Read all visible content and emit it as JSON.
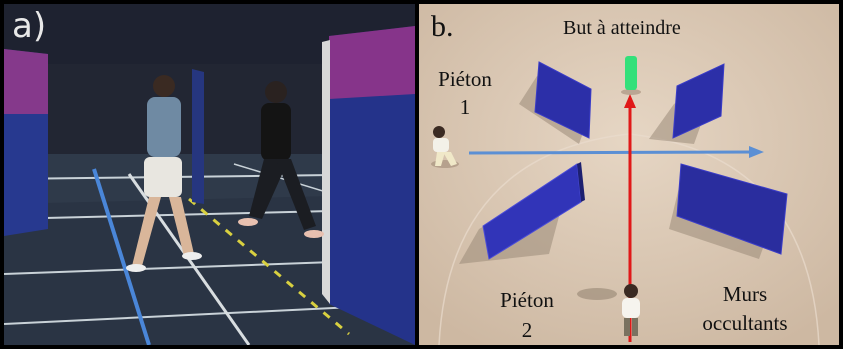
{
  "panel_a": {
    "label": "a)"
  },
  "panel_b": {
    "label": "b.",
    "goal_label": "But à atteindre",
    "pedestrian_1": {
      "label": "Piéton",
      "number": "1"
    },
    "pedestrian_2": {
      "label": "Piéton",
      "number": "2"
    },
    "walls_label": {
      "line1": "Murs",
      "line2": "occultants"
    }
  },
  "colors": {
    "wall_blue": "#2a2f9e",
    "ground": "#d9c6b2",
    "path_blue": "#5b8fd4",
    "path_red": "#e01818",
    "goal_green": "#33e07a"
  }
}
